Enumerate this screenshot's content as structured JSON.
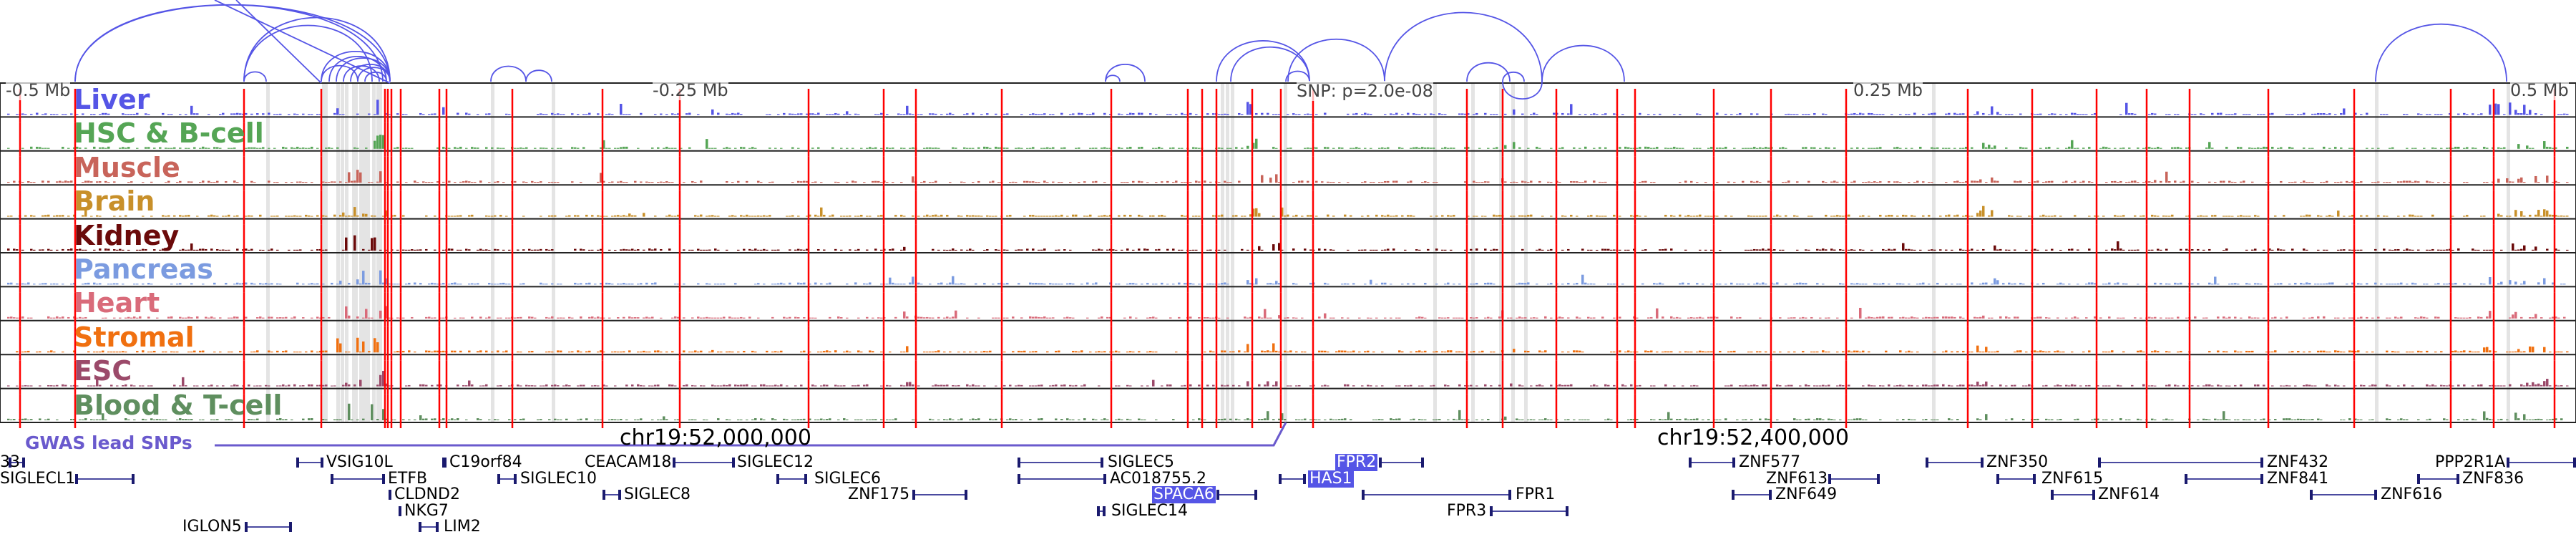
{
  "header": {
    "axis_labels": [
      "-0.5 Mb",
      "-0.25 Mb",
      "0.25 Mb",
      "0.5 Mb"
    ],
    "snp_label": "SNP: p=2.0e-08"
  },
  "tracks": [
    {
      "label": "Liver",
      "color": "#5555e6"
    },
    {
      "label": "HSC & B-cell",
      "color": "#55a555"
    },
    {
      "label": "Muscle",
      "color": "#c8645a"
    },
    {
      "label": "Brain",
      "color": "#c8902a"
    },
    {
      "label": "Kidney",
      "color": "#6b0a0a"
    },
    {
      "label": "Pancreas",
      "color": "#7b9be0"
    },
    {
      "label": "Heart",
      "color": "#d96b7a"
    },
    {
      "label": "Stromal",
      "color": "#f07010"
    },
    {
      "label": "ESC",
      "color": "#9b4a6a"
    },
    {
      "label": "Blood & T-cell",
      "color": "#5f8f5f"
    }
  ],
  "gwas_label": "GWAS lead SNPs",
  "chrom_labels": [
    "chr19:52,000,000",
    "chr19:52,400,000"
  ],
  "genes": [
    "33",
    "VSIG10L",
    "C19orf84",
    "CEACAM18",
    "SIGLEC12",
    "SIGLEC5",
    "FPR2",
    "ZNF577",
    "ZNF350",
    "ZNF432",
    "PPP2R1A",
    "SIGLECL1",
    "ETFB",
    "SIGLEC10",
    "SIGLEC6",
    "AC018755.2",
    "HAS1",
    "ZNF613",
    "ZNF615",
    "ZNF841",
    "ZNF836",
    "CLDND2",
    "SIGLEC8",
    "ZNF175",
    "SPACA6",
    "FPR1",
    "ZNF649",
    "ZNF614",
    "ZNF616",
    "NKG7",
    "SIGLEC14",
    "FPR3",
    "IGLON5",
    "LIM2"
  ],
  "highlight_color": "#5555e6"
}
